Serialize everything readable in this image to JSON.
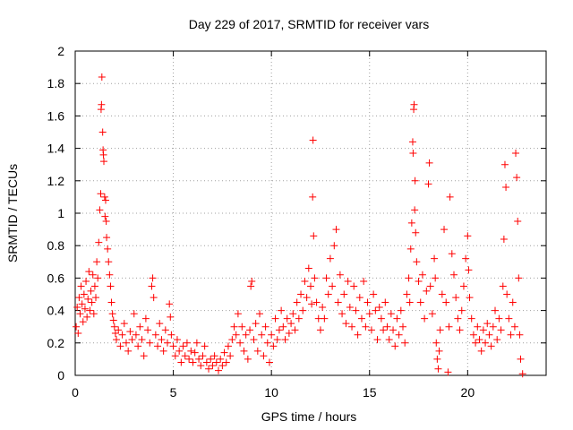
{
  "chart_data": {
    "type": "scatter",
    "title": "Day 229 of 2017, SRMTID for receiver vars",
    "xlabel": "GPS time / hours",
    "ylabel": "SRMTID / TECUs",
    "xlim": [
      0,
      24
    ],
    "ylim": [
      0,
      2
    ],
    "xticks": [
      0,
      5,
      10,
      15,
      20
    ],
    "xtick_labels": [
      "0",
      "5",
      "10",
      "15",
      "20"
    ],
    "yticks": [
      0,
      0.2,
      0.4,
      0.6,
      0.8,
      1,
      1.2,
      1.4,
      1.6,
      1.8,
      2
    ],
    "ytick_labels": [
      "0",
      "0.2",
      "0.4",
      "0.6",
      "0.8",
      "1",
      "1.2",
      "1.4",
      "1.6",
      "1.8",
      "2"
    ],
    "grid": true,
    "marker": "+",
    "color": "#ff0000",
    "series": [
      {
        "name": "SRMTID",
        "points": [
          [
            0.05,
            0.3
          ],
          [
            0.1,
            0.42
          ],
          [
            0.15,
            0.26
          ],
          [
            0.2,
            0.48
          ],
          [
            0.25,
            0.38
          ],
          [
            0.3,
            0.55
          ],
          [
            0.35,
            0.44
          ],
          [
            0.4,
            0.33
          ],
          [
            0.45,
            0.5
          ],
          [
            0.5,
            0.41
          ],
          [
            0.55,
            0.58
          ],
          [
            0.6,
            0.36
          ],
          [
            0.65,
            0.47
          ],
          [
            0.7,
            0.64
          ],
          [
            0.75,
            0.4
          ],
          [
            0.8,
            0.52
          ],
          [
            0.85,
            0.45
          ],
          [
            0.9,
            0.62
          ],
          [
            0.95,
            0.38
          ],
          [
            1.0,
            0.55
          ],
          [
            1.05,
            0.48
          ],
          [
            1.1,
            0.7
          ],
          [
            1.15,
            0.6
          ],
          [
            1.2,
            0.82
          ],
          [
            1.25,
            1.02
          ],
          [
            1.3,
            1.12
          ],
          [
            1.32,
            1.64
          ],
          [
            1.34,
            1.67
          ],
          [
            1.36,
            1.84
          ],
          [
            1.4,
            1.5
          ],
          [
            1.42,
            1.39
          ],
          [
            1.44,
            1.36
          ],
          [
            1.46,
            1.32
          ],
          [
            1.5,
            1.1
          ],
          [
            1.52,
            0.98
          ],
          [
            1.55,
            1.08
          ],
          [
            1.58,
            0.95
          ],
          [
            1.6,
            0.85
          ],
          [
            1.65,
            0.78
          ],
          [
            1.7,
            0.7
          ],
          [
            1.75,
            0.62
          ],
          [
            1.8,
            0.55
          ],
          [
            1.85,
            0.45
          ],
          [
            1.9,
            0.38
          ],
          [
            1.95,
            0.34
          ],
          [
            2.0,
            0.3
          ],
          [
            2.05,
            0.26
          ],
          [
            2.1,
            0.22
          ],
          [
            2.2,
            0.28
          ],
          [
            2.3,
            0.18
          ],
          [
            2.4,
            0.25
          ],
          [
            2.5,
            0.32
          ],
          [
            2.6,
            0.2
          ],
          [
            2.7,
            0.15
          ],
          [
            2.8,
            0.27
          ],
          [
            2.9,
            0.22
          ],
          [
            3.0,
            0.38
          ],
          [
            3.1,
            0.25
          ],
          [
            3.2,
            0.18
          ],
          [
            3.3,
            0.3
          ],
          [
            3.4,
            0.22
          ],
          [
            3.5,
            0.12
          ],
          [
            3.6,
            0.35
          ],
          [
            3.7,
            0.28
          ],
          [
            3.8,
            0.2
          ],
          [
            3.9,
            0.55
          ],
          [
            3.95,
            0.6
          ],
          [
            4.0,
            0.48
          ],
          [
            4.1,
            0.25
          ],
          [
            4.2,
            0.18
          ],
          [
            4.3,
            0.32
          ],
          [
            4.4,
            0.22
          ],
          [
            4.5,
            0.15
          ],
          [
            4.6,
            0.28
          ],
          [
            4.7,
            0.2
          ],
          [
            4.8,
            0.44
          ],
          [
            4.85,
            0.36
          ],
          [
            4.9,
            0.25
          ],
          [
            5.0,
            0.18
          ],
          [
            5.1,
            0.12
          ],
          [
            5.2,
            0.22
          ],
          [
            5.3,
            0.15
          ],
          [
            5.4,
            0.08
          ],
          [
            5.5,
            0.18
          ],
          [
            5.6,
            0.12
          ],
          [
            5.7,
            0.2
          ],
          [
            5.8,
            0.1
          ],
          [
            5.9,
            0.15
          ],
          [
            6.0,
            0.08
          ],
          [
            6.1,
            0.14
          ],
          [
            6.2,
            0.2
          ],
          [
            6.3,
            0.1
          ],
          [
            6.4,
            0.06
          ],
          [
            6.5,
            0.12
          ],
          [
            6.6,
            0.18
          ],
          [
            6.7,
            0.08
          ],
          [
            6.8,
            0.04
          ],
          [
            6.9,
            0.1
          ],
          [
            7.0,
            0.06
          ],
          [
            7.1,
            0.12
          ],
          [
            7.2,
            0.08
          ],
          [
            7.3,
            0.03
          ],
          [
            7.4,
            0.1
          ],
          [
            7.5,
            0.06
          ],
          [
            7.6,
            0.14
          ],
          [
            7.7,
            0.08
          ],
          [
            7.8,
            0.18
          ],
          [
            7.9,
            0.12
          ],
          [
            8.0,
            0.22
          ],
          [
            8.1,
            0.3
          ],
          [
            8.2,
            0.25
          ],
          [
            8.3,
            0.38
          ],
          [
            8.4,
            0.2
          ],
          [
            8.5,
            0.3
          ],
          [
            8.6,
            0.15
          ],
          [
            8.7,
            0.25
          ],
          [
            8.8,
            0.1
          ],
          [
            8.9,
            0.28
          ],
          [
            8.95,
            0.55
          ],
          [
            9.0,
            0.58
          ],
          [
            9.1,
            0.22
          ],
          [
            9.2,
            0.32
          ],
          [
            9.3,
            0.15
          ],
          [
            9.4,
            0.38
          ],
          [
            9.5,
            0.25
          ],
          [
            9.6,
            0.12
          ],
          [
            9.7,
            0.3
          ],
          [
            9.8,
            0.2
          ],
          [
            9.9,
            0.08
          ],
          [
            10.0,
            0.25
          ],
          [
            10.1,
            0.18
          ],
          [
            10.2,
            0.35
          ],
          [
            10.3,
            0.22
          ],
          [
            10.4,
            0.28
          ],
          [
            10.5,
            0.4
          ],
          [
            10.6,
            0.3
          ],
          [
            10.7,
            0.22
          ],
          [
            10.8,
            0.35
          ],
          [
            10.9,
            0.26
          ],
          [
            11.0,
            0.32
          ],
          [
            11.1,
            0.38
          ],
          [
            11.2,
            0.28
          ],
          [
            11.3,
            0.45
          ],
          [
            11.4,
            0.35
          ],
          [
            11.5,
            0.5
          ],
          [
            11.6,
            0.4
          ],
          [
            11.7,
            0.58
          ],
          [
            11.8,
            0.48
          ],
          [
            11.9,
            0.66
          ],
          [
            12.0,
            0.55
          ],
          [
            12.05,
            0.44
          ],
          [
            12.1,
            1.1
          ],
          [
            12.12,
            1.45
          ],
          [
            12.15,
            0.86
          ],
          [
            12.2,
            0.6
          ],
          [
            12.3,
            0.45
          ],
          [
            12.4,
            0.35
          ],
          [
            12.5,
            0.28
          ],
          [
            12.6,
            0.42
          ],
          [
            12.7,
            0.35
          ],
          [
            12.8,
            0.6
          ],
          [
            12.9,
            0.5
          ],
          [
            13.0,
            0.72
          ],
          [
            13.1,
            0.55
          ],
          [
            13.2,
            0.8
          ],
          [
            13.3,
            0.9
          ],
          [
            13.4,
            0.45
          ],
          [
            13.5,
            0.62
          ],
          [
            13.6,
            0.38
          ],
          [
            13.7,
            0.5
          ],
          [
            13.8,
            0.32
          ],
          [
            13.9,
            0.58
          ],
          [
            14.0,
            0.42
          ],
          [
            14.1,
            0.3
          ],
          [
            14.2,
            0.55
          ],
          [
            14.3,
            0.4
          ],
          [
            14.4,
            0.25
          ],
          [
            14.5,
            0.48
          ],
          [
            14.6,
            0.35
          ],
          [
            14.7,
            0.58
          ],
          [
            14.8,
            0.3
          ],
          [
            14.9,
            0.45
          ],
          [
            15.0,
            0.38
          ],
          [
            15.1,
            0.28
          ],
          [
            15.2,
            0.5
          ],
          [
            15.3,
            0.4
          ],
          [
            15.4,
            0.22
          ],
          [
            15.5,
            0.42
          ],
          [
            15.6,
            0.35
          ],
          [
            15.7,
            0.28
          ],
          [
            15.8,
            0.45
          ],
          [
            15.9,
            0.3
          ],
          [
            16.0,
            0.22
          ],
          [
            16.1,
            0.38
          ],
          [
            16.2,
            0.28
          ],
          [
            16.3,
            0.18
          ],
          [
            16.4,
            0.35
          ],
          [
            16.5,
            0.25
          ],
          [
            16.6,
            0.4
          ],
          [
            16.7,
            0.3
          ],
          [
            16.8,
            0.2
          ],
          [
            16.9,
            0.5
          ],
          [
            17.0,
            0.6
          ],
          [
            17.05,
            0.45
          ],
          [
            17.1,
            0.78
          ],
          [
            17.15,
            0.94
          ],
          [
            17.2,
            1.44
          ],
          [
            17.22,
            1.37
          ],
          [
            17.25,
            1.64
          ],
          [
            17.27,
            1.67
          ],
          [
            17.3,
            1.02
          ],
          [
            17.32,
            1.2
          ],
          [
            17.35,
            0.88
          ],
          [
            17.4,
            0.7
          ],
          [
            17.5,
            0.58
          ],
          [
            17.6,
            0.45
          ],
          [
            17.7,
            0.62
          ],
          [
            17.8,
            0.35
          ],
          [
            17.9,
            0.52
          ],
          [
            18.0,
            1.18
          ],
          [
            18.05,
            1.31
          ],
          [
            18.1,
            0.55
          ],
          [
            18.2,
            0.38
          ],
          [
            18.3,
            0.72
          ],
          [
            18.35,
            0.6
          ],
          [
            18.4,
            0.2
          ],
          [
            18.45,
            0.1
          ],
          [
            18.5,
            0.04
          ],
          [
            18.55,
            0.15
          ],
          [
            18.6,
            0.28
          ],
          [
            18.7,
            0.5
          ],
          [
            18.8,
            0.9
          ],
          [
            18.9,
            0.45
          ],
          [
            19.0,
            0.02
          ],
          [
            19.05,
            0.3
          ],
          [
            19.1,
            1.1
          ],
          [
            19.2,
            0.75
          ],
          [
            19.3,
            0.62
          ],
          [
            19.4,
            0.48
          ],
          [
            19.5,
            0.35
          ],
          [
            19.6,
            0.28
          ],
          [
            19.7,
            0.4
          ],
          [
            19.8,
            0.55
          ],
          [
            19.9,
            0.72
          ],
          [
            20.0,
            0.86
          ],
          [
            20.05,
            0.65
          ],
          [
            20.1,
            0.48
          ],
          [
            20.2,
            0.35
          ],
          [
            20.3,
            0.25
          ],
          [
            20.4,
            0.2
          ],
          [
            20.5,
            0.3
          ],
          [
            20.6,
            0.22
          ],
          [
            20.7,
            0.15
          ],
          [
            20.8,
            0.28
          ],
          [
            20.9,
            0.2
          ],
          [
            21.0,
            0.32
          ],
          [
            21.1,
            0.25
          ],
          [
            21.2,
            0.18
          ],
          [
            21.3,
            0.3
          ],
          [
            21.4,
            0.4
          ],
          [
            21.5,
            0.22
          ],
          [
            21.6,
            0.35
          ],
          [
            21.7,
            0.28
          ],
          [
            21.8,
            0.55
          ],
          [
            21.85,
            0.84
          ],
          [
            21.9,
            1.3
          ],
          [
            21.95,
            1.16
          ],
          [
            22.0,
            0.5
          ],
          [
            22.1,
            0.35
          ],
          [
            22.2,
            0.25
          ],
          [
            22.3,
            0.45
          ],
          [
            22.4,
            0.3
          ],
          [
            22.45,
            1.37
          ],
          [
            22.5,
            1.22
          ],
          [
            22.55,
            0.95
          ],
          [
            22.6,
            0.6
          ],
          [
            22.65,
            0.25
          ],
          [
            22.7,
            0.1
          ],
          [
            22.8,
            0.01
          ]
        ]
      }
    ]
  }
}
